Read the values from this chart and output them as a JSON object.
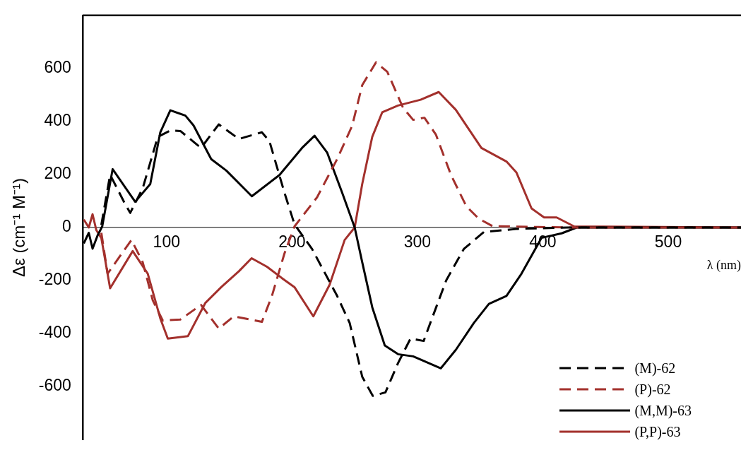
{
  "chart_data": {
    "type": "line",
    "xlabel": "λ (nm)",
    "ylabel": "Δε (cm⁻¹ M⁻¹)",
    "xlim": [
      33,
      558
    ],
    "xticks": [
      100,
      200,
      300,
      400,
      500
    ],
    "ylim": [
      -800,
      800
    ],
    "yticks": [
      -600,
      -400,
      -200,
      0,
      200,
      400,
      600
    ],
    "grid": false,
    "legend": "bottom right",
    "marker": "none",
    "series": [
      {
        "name": "(M)-62",
        "color": "#000000",
        "line_style": "dashed",
        "x": [
          48,
          55,
          67,
          71,
          81,
          93,
          103,
          111,
          127.5,
          141.6,
          157.7,
          176,
          182,
          194,
          202,
          216,
          236,
          246,
          256,
          264.4,
          274.5,
          284.5,
          294.5,
          305,
          311,
          323,
          337,
          353,
          380,
          420,
          558
        ],
        "values": [
          10,
          199,
          88,
          55,
          148,
          342,
          366,
          364,
          300,
          389,
          334,
          359,
          326,
          131,
          12,
          -81,
          -258,
          -360,
          -563,
          -635,
          -622,
          -512,
          -419,
          -428,
          -351,
          -199,
          -81,
          -17,
          -5,
          0,
          0
        ]
      },
      {
        "name": "(P)-62",
        "color": "#a3302c",
        "line_style": "dashed",
        "x": [
          48,
          53,
          72,
          81,
          89,
          97,
          111,
          127.5,
          141.6,
          153.7,
          176,
          184,
          194,
          202,
          220,
          236,
          248,
          256,
          267,
          276,
          288.5,
          296.6,
          305.6,
          314.7,
          326.8,
          339,
          349,
          360,
          420,
          558
        ],
        "values": [
          -20,
          -174,
          -47,
          -131,
          -275,
          -351,
          -347,
          -292,
          -381,
          -335,
          -356,
          -258,
          -98,
          4,
          114,
          258,
          384,
          537,
          623,
          587,
          452,
          406,
          414,
          351,
          198,
          80,
          33,
          5,
          0,
          0
        ]
      },
      {
        "name": "(M,M)-63",
        "color": "#000000",
        "line_style": "solid",
        "x": [
          34,
          38,
          41,
          45,
          48.7,
          57,
          75,
          87,
          95,
          103,
          115,
          121.5,
          135.6,
          147.6,
          168,
          190,
          208,
          218,
          228,
          240,
          250,
          256,
          264,
          274,
          284.6,
          296.6,
          318.7,
          330.7,
          345,
          357,
          371,
          383,
          399,
          415,
          427,
          558
        ],
        "values": [
          -60,
          -20,
          -80,
          -30,
          4,
          220,
          97,
          164,
          359,
          442,
          422,
          385,
          258,
          215,
          118,
          198,
          300,
          346,
          283,
          131,
          0,
          -131,
          -301,
          -445,
          -478,
          -486,
          -531,
          -461,
          -360,
          -288,
          -258,
          -174,
          -39,
          -22,
          0,
          0
        ]
      },
      {
        "name": "(P,P)-63",
        "color": "#a3302c",
        "line_style": "solid",
        "x": [
          34,
          38,
          41,
          44,
          48,
          55,
          73,
          85,
          95,
          101,
          117,
          131,
          143.6,
          157.7,
          167.8,
          180,
          192,
          202,
          217,
          230,
          242,
          250,
          256,
          264,
          272,
          284.5,
          302.6,
          317,
          330.6,
          351,
          371,
          379,
          391,
          401,
          411,
          425,
          558
        ],
        "values": [
          30,
          0,
          50,
          -10,
          -40,
          -229,
          -89,
          -174,
          -343,
          -419,
          -410,
          -284,
          -225,
          -165,
          -116,
          -148,
          -191,
          -225,
          -335,
          -216,
          -47,
          0,
          164,
          342,
          435,
          460,
          482,
          511,
          444,
          300,
          249,
          207,
          72,
          38,
          38,
          4,
          0
        ]
      }
    ]
  }
}
